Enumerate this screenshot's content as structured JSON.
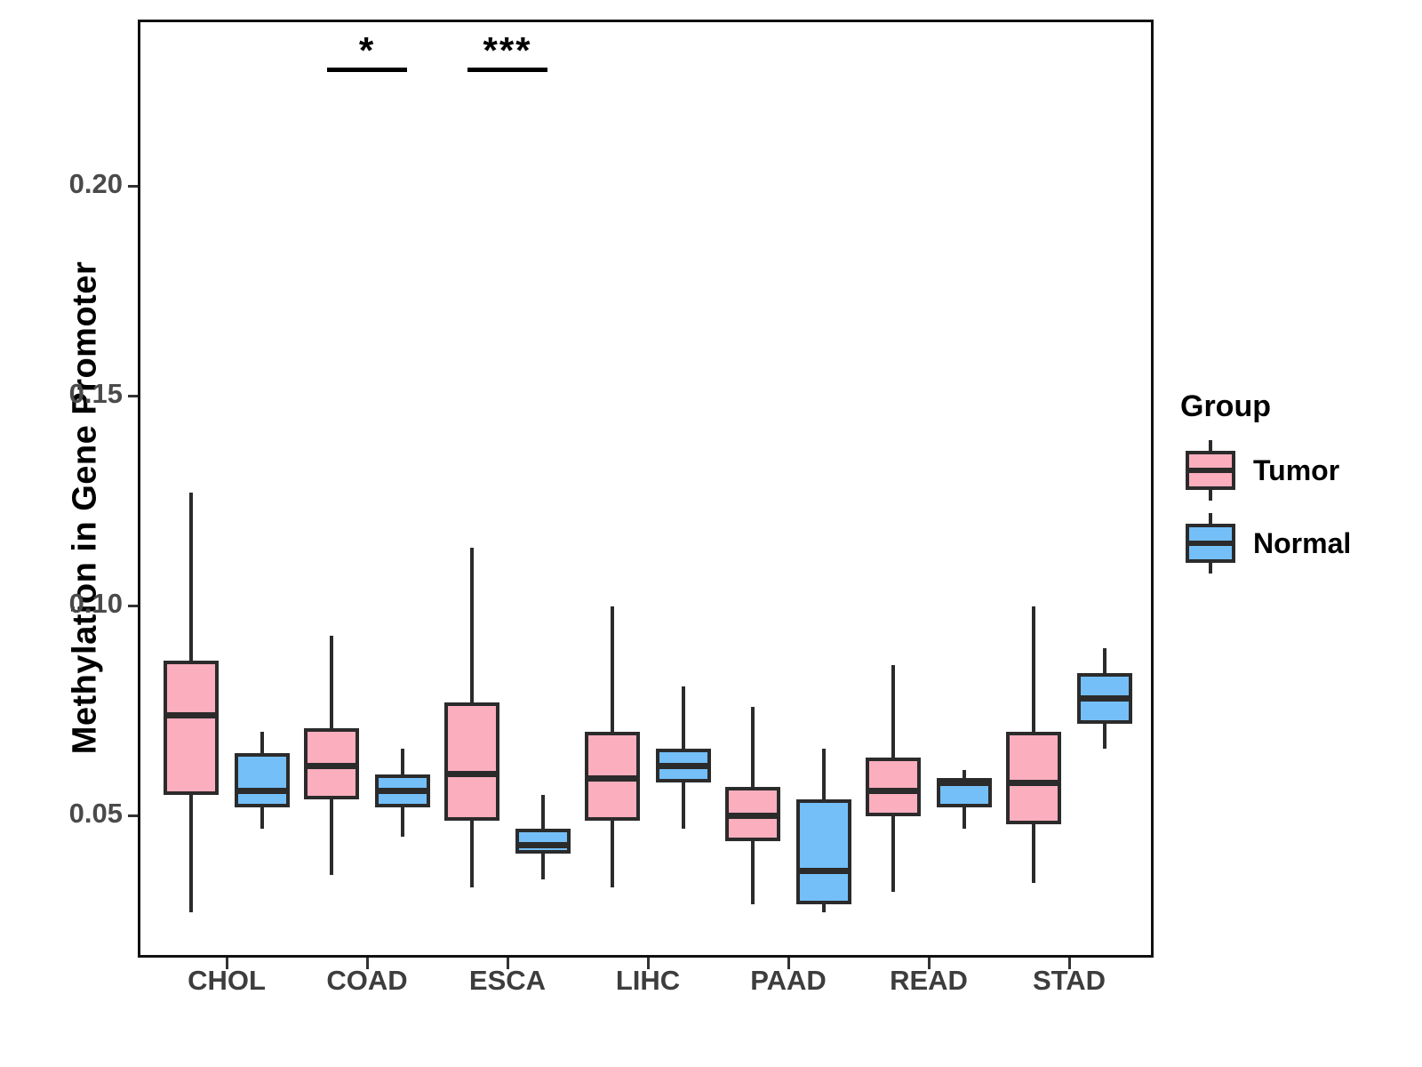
{
  "chart_data": {
    "type": "boxplot",
    "title": "",
    "xlabel": "",
    "ylabel": "Methylation in Gene Promoter",
    "categories": [
      "CHOL",
      "COAD",
      "ESCA",
      "LIHC",
      "PAAD",
      "READ",
      "STAD"
    ],
    "y_ticks": [
      0.05,
      0.1,
      0.15,
      0.2
    ],
    "ylim": [
      0.017,
      0.239
    ],
    "grid": "off",
    "legend_position": "right",
    "legend": {
      "title": "Group",
      "entries": [
        {
          "label": "Tumor",
          "color": "#FBAEBE"
        },
        {
          "label": "Normal",
          "color": "#74BFF7"
        }
      ]
    },
    "series": [
      {
        "name": "Tumor",
        "color": "#FBAEBE",
        "boxes": [
          {
            "category": "CHOL",
            "whisker_low": 0.027,
            "q1": 0.055,
            "median": 0.074,
            "q3": 0.087,
            "whisker_high": 0.127
          },
          {
            "category": "COAD",
            "whisker_low": 0.036,
            "q1": 0.054,
            "median": 0.062,
            "q3": 0.071,
            "whisker_high": 0.093
          },
          {
            "category": "ESCA",
            "whisker_low": 0.033,
            "q1": 0.049,
            "median": 0.06,
            "q3": 0.077,
            "whisker_high": 0.114
          },
          {
            "category": "LIHC",
            "whisker_low": 0.033,
            "q1": 0.049,
            "median": 0.059,
            "q3": 0.07,
            "whisker_high": 0.1
          },
          {
            "category": "PAAD",
            "whisker_low": 0.029,
            "q1": 0.044,
            "median": 0.05,
            "q3": 0.057,
            "whisker_high": 0.076
          },
          {
            "category": "READ",
            "whisker_low": 0.032,
            "q1": 0.05,
            "median": 0.056,
            "q3": 0.064,
            "whisker_high": 0.086
          },
          {
            "category": "STAD",
            "whisker_low": 0.034,
            "q1": 0.048,
            "median": 0.058,
            "q3": 0.07,
            "whisker_high": 0.1
          }
        ]
      },
      {
        "name": "Normal",
        "color": "#74BFF7",
        "boxes": [
          {
            "category": "CHOL",
            "whisker_low": 0.047,
            "q1": 0.052,
            "median": 0.056,
            "q3": 0.065,
            "whisker_high": 0.07
          },
          {
            "category": "COAD",
            "whisker_low": 0.045,
            "q1": 0.052,
            "median": 0.056,
            "q3": 0.06,
            "whisker_high": 0.066
          },
          {
            "category": "ESCA",
            "whisker_low": 0.035,
            "q1": 0.041,
            "median": 0.043,
            "q3": 0.047,
            "whisker_high": 0.055
          },
          {
            "category": "LIHC",
            "whisker_low": 0.047,
            "q1": 0.058,
            "median": 0.062,
            "q3": 0.066,
            "whisker_high": 0.081
          },
          {
            "category": "PAAD",
            "whisker_low": 0.027,
            "q1": 0.029,
            "median": 0.037,
            "q3": 0.054,
            "whisker_high": 0.066
          },
          {
            "category": "READ",
            "whisker_low": 0.047,
            "q1": 0.052,
            "median": 0.058,
            "q3": 0.059,
            "whisker_high": 0.061
          },
          {
            "category": "STAD",
            "whisker_low": 0.066,
            "q1": 0.072,
            "median": 0.078,
            "q3": 0.084,
            "whisker_high": 0.09
          }
        ]
      }
    ],
    "significance": [
      {
        "category": "COAD",
        "label": "*"
      },
      {
        "category": "ESCA",
        "label": "***"
      }
    ],
    "colors": {
      "tumor_fill": "#FBAEBE",
      "normal_fill": "#74BFF7",
      "stroke": "#2b2b2b",
      "panel_border": "#111111",
      "tick_label": "#4a4a4a",
      "axis_label": "#000000"
    }
  }
}
